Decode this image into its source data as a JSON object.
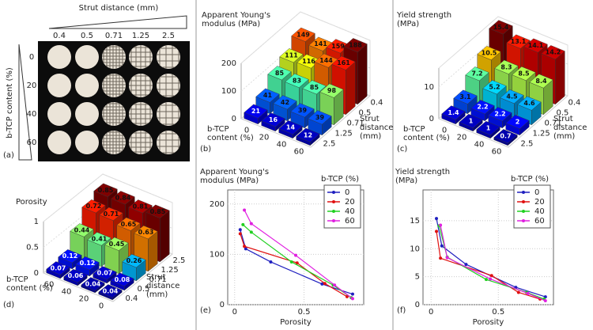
{
  "panel_a": {
    "label": "(a)",
    "column_title": "Strut distance (mm)",
    "columns": [
      "0.4",
      "0.5",
      "0.71",
      "1.25",
      "2.5"
    ],
    "row_title": "b-TCP content (%)",
    "rows": [
      "0",
      "20",
      "40",
      "60"
    ]
  },
  "chart_data": [
    {
      "type": "bar3d",
      "panel": "(b)",
      "title": "Apparent Young's modulus (MPa)",
      "x_label": "b-TCP content (%)",
      "y_label": "Strut distance (mm)",
      "x_categories": [
        "0",
        "20",
        "40",
        "60"
      ],
      "y_categories": [
        "0.4",
        "0.5",
        "0.71",
        "1.25",
        "2.5"
      ],
      "values": [
        [
          149,
          141,
          159,
          188
        ],
        [
          111,
          116,
          144,
          161
        ],
        [
          85,
          83,
          85,
          98
        ],
        [
          41,
          42,
          39,
          39
        ],
        [
          21,
          16,
          14,
          12
        ]
      ],
      "zlim": [
        0,
        200
      ],
      "zticks": [
        0,
        100,
        200
      ],
      "colormap": "jet"
    },
    {
      "type": "bar3d",
      "panel": "(c)",
      "title": "Yield strength (MPa)",
      "x_label": "b-TCP content (%)",
      "y_label": "Strut distance (mm)",
      "x_categories": [
        "0",
        "20",
        "40",
        "60"
      ],
      "y_categories": [
        "0.4",
        "0.5",
        "0.71",
        "1.25",
        "2.5"
      ],
      "values": [
        [
          15.4,
          13.1,
          14.1,
          14.2
        ],
        [
          10.5,
          8.3,
          8.5,
          8.4
        ],
        [
          7.2,
          5.2,
          4.5,
          4.6
        ],
        [
          3.1,
          2.2,
          2.2,
          2
        ],
        [
          1.4,
          1,
          1,
          0.7
        ]
      ],
      "zlim": [
        0,
        16
      ],
      "zticks": [
        0,
        10
      ],
      "colormap": "jet"
    },
    {
      "type": "bar3d",
      "panel": "(d)",
      "title": "Porosity",
      "x_label": "b-TCP content (%)",
      "y_label": "Strut distance (mm)",
      "x_categories": [
        "60",
        "40",
        "20",
        "0"
      ],
      "y_categories": [
        "2.5",
        "1.25",
        "0.71",
        "0.5",
        "0.4"
      ],
      "values": [
        [
          0.85,
          0.84,
          0.81,
          0.85
        ],
        [
          0.72,
          0.71,
          0.65,
          0.63
        ],
        [
          0.44,
          0.41,
          0.45,
          0.26
        ],
        [
          0.12,
          0.12,
          0.07,
          0.08
        ],
        [
          0.07,
          0.06,
          0.04,
          0.04
        ]
      ],
      "zlim": [
        0,
        1
      ],
      "zticks": [
        0,
        0.5,
        1
      ],
      "colormap": "jet"
    },
    {
      "type": "line",
      "panel": "(e)",
      "y_label": "Apparent Young's modulus (MPa)",
      "x_label": "Porosity",
      "xlim": [
        -0.05,
        0.93
      ],
      "xticks": [
        0,
        0.5
      ],
      "ylim": [
        0,
        228
      ],
      "yticks": [
        0,
        100,
        200
      ],
      "grid": true,
      "legend_title": "b-TCP (%)",
      "legend": "upper right",
      "series": [
        {
          "name": "0",
          "color": "#1f1fbf",
          "x": [
            0.04,
            0.08,
            0.26,
            0.63,
            0.85
          ],
          "values": [
            149,
            111,
            85,
            41,
            21
          ]
        },
        {
          "name": "20",
          "color": "#e01010",
          "x": [
            0.04,
            0.07,
            0.45,
            0.65,
            0.81
          ],
          "values": [
            141,
            116,
            83,
            42,
            16
          ]
        },
        {
          "name": "40",
          "color": "#20d020",
          "x": [
            0.06,
            0.12,
            0.41,
            0.71,
            0.84
          ],
          "values": [
            159,
            144,
            85,
            39,
            14
          ]
        },
        {
          "name": "60",
          "color": "#e020e0",
          "x": [
            0.07,
            0.12,
            0.44,
            0.72,
            0.85
          ],
          "values": [
            188,
            161,
            98,
            39,
            12
          ]
        }
      ]
    },
    {
      "type": "line",
      "panel": "(f)",
      "y_label": "Yield strength (MPa)",
      "x_label": "Porosity",
      "xlim": [
        -0.06,
        0.91
      ],
      "xticks": [
        0,
        0.5
      ],
      "ylim": [
        0,
        20.5
      ],
      "yticks": [
        0,
        5,
        10,
        15
      ],
      "grid": true,
      "legend_title": "b-TCP (%)",
      "legend": "upper right",
      "series": [
        {
          "name": "0",
          "color": "#1f1fbf",
          "x": [
            0.04,
            0.08,
            0.26,
            0.63,
            0.85
          ],
          "values": [
            15.4,
            10.5,
            7.2,
            3.1,
            1.4
          ]
        },
        {
          "name": "20",
          "color": "#e01010",
          "x": [
            0.04,
            0.07,
            0.45,
            0.65,
            0.81
          ],
          "values": [
            13.1,
            8.3,
            5.2,
            2.2,
            1
          ]
        },
        {
          "name": "40",
          "color": "#20d020",
          "x": [
            0.06,
            0.12,
            0.41,
            0.71,
            0.84
          ],
          "values": [
            14.1,
            8.5,
            4.5,
            2.2,
            1
          ]
        },
        {
          "name": "60",
          "color": "#e020e0",
          "x": [
            0.07,
            0.12,
            0.44,
            0.72,
            0.85
          ],
          "values": [
            14.2,
            8.4,
            4.6,
            2,
            0.7
          ]
        }
      ]
    }
  ]
}
